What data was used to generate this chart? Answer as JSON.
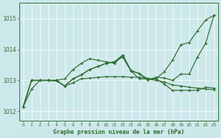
{
  "xlabel": "Graphe pression niveau de la mer (hPa)",
  "x": [
    0,
    1,
    2,
    3,
    4,
    5,
    6,
    7,
    8,
    9,
    10,
    11,
    12,
    13,
    14,
    15,
    16,
    17,
    18,
    19,
    20,
    21,
    22,
    23
  ],
  "line1": [
    1012.15,
    1012.72,
    1013.0,
    1013.0,
    1012.98,
    1012.82,
    1012.92,
    1013.05,
    1013.07,
    1013.1,
    1013.12,
    1013.12,
    1013.12,
    1013.1,
    1013.1,
    1013.05,
    1013.0,
    1012.95,
    1012.85,
    1012.82,
    1012.78,
    1012.75,
    1012.72,
    1012.7
  ],
  "line2": [
    1012.15,
    1013.0,
    1013.0,
    1013.0,
    1013.0,
    1012.82,
    1013.05,
    1013.18,
    1013.35,
    1013.45,
    1013.55,
    1013.6,
    1013.82,
    1013.32,
    1013.22,
    1013.0,
    1013.1,
    1013.08,
    1013.0,
    1013.2,
    1013.2,
    1013.75,
    1014.2,
    1015.1
  ],
  "line3": [
    1012.15,
    1013.0,
    1013.0,
    1013.0,
    1013.0,
    1012.82,
    1013.05,
    1013.18,
    1013.35,
    1013.45,
    1013.55,
    1013.6,
    1013.75,
    1013.3,
    1013.05,
    1013.05,
    1013.05,
    1012.88,
    1012.68,
    1012.68,
    1012.68,
    1012.68,
    1012.78,
    1012.75
  ],
  "line4": [
    1012.15,
    1013.0,
    1013.0,
    1013.0,
    1013.0,
    1013.05,
    1013.35,
    1013.55,
    1013.7,
    1013.65,
    1013.6,
    1013.55,
    1013.8,
    1013.3,
    1013.22,
    1013.05,
    1013.05,
    1013.28,
    1013.65,
    1014.15,
    1014.22,
    1014.6,
    1014.95,
    1015.1
  ],
  "line_color": "#2d6b2d",
  "background_color": "#cde8eb",
  "grid_color": "#b8d8dc",
  "ylim": [
    1011.7,
    1015.5
  ],
  "yticks": [
    1012,
    1013,
    1014,
    1015
  ],
  "xticks": [
    0,
    1,
    2,
    3,
    4,
    5,
    6,
    7,
    8,
    9,
    10,
    11,
    12,
    13,
    14,
    15,
    16,
    17,
    18,
    19,
    20,
    21,
    22,
    23
  ]
}
